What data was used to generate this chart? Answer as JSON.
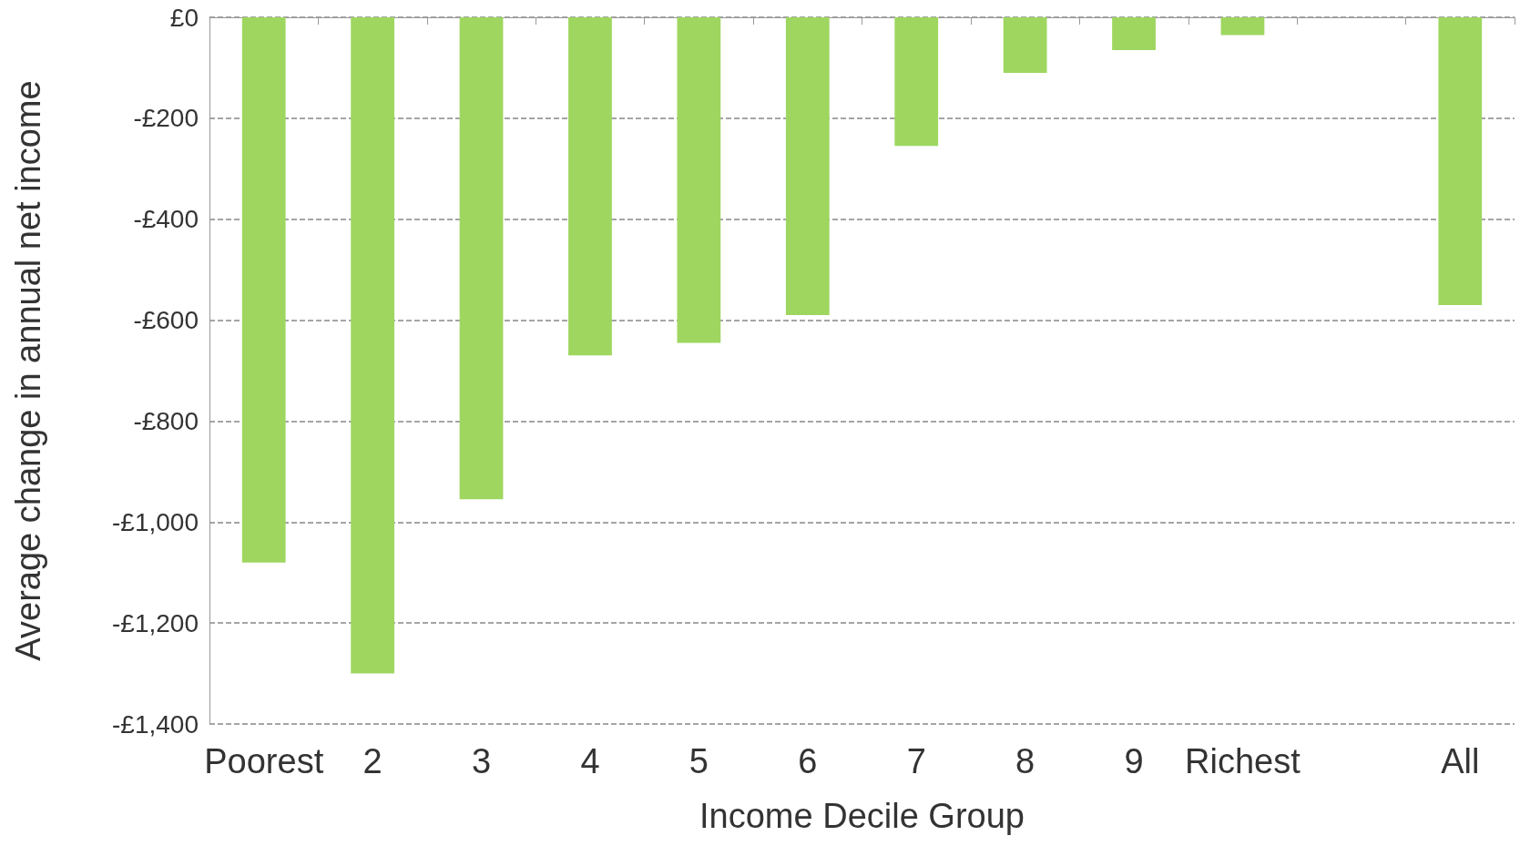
{
  "chart_data": {
    "type": "bar",
    "xlabel": "Income Decile Group",
    "ylabel": "Average change in annual net income",
    "categories": [
      "Poorest",
      "2",
      "3",
      "4",
      "5",
      "6",
      "7",
      "8",
      "9",
      "Richest",
      null,
      "All"
    ],
    "values": [
      -1080,
      -1300,
      -955,
      -670,
      -645,
      -590,
      -255,
      -110,
      -65,
      -35,
      null,
      -570
    ],
    "color": "#9ed65f",
    "ylim": [
      -1400,
      0
    ],
    "yticks": [
      {
        "value": -1400,
        "label": "-£1,400"
      },
      {
        "value": -1200,
        "label": "-£1,200"
      },
      {
        "value": -1000,
        "label": "-£1,000"
      },
      {
        "value": -800,
        "label": "-£800"
      },
      {
        "value": -600,
        "label": "-£600"
      },
      {
        "value": -400,
        "label": "-£400"
      },
      {
        "value": -200,
        "label": "-£200"
      },
      {
        "value": 0,
        "label": "£0"
      }
    ],
    "grid": "y"
  }
}
